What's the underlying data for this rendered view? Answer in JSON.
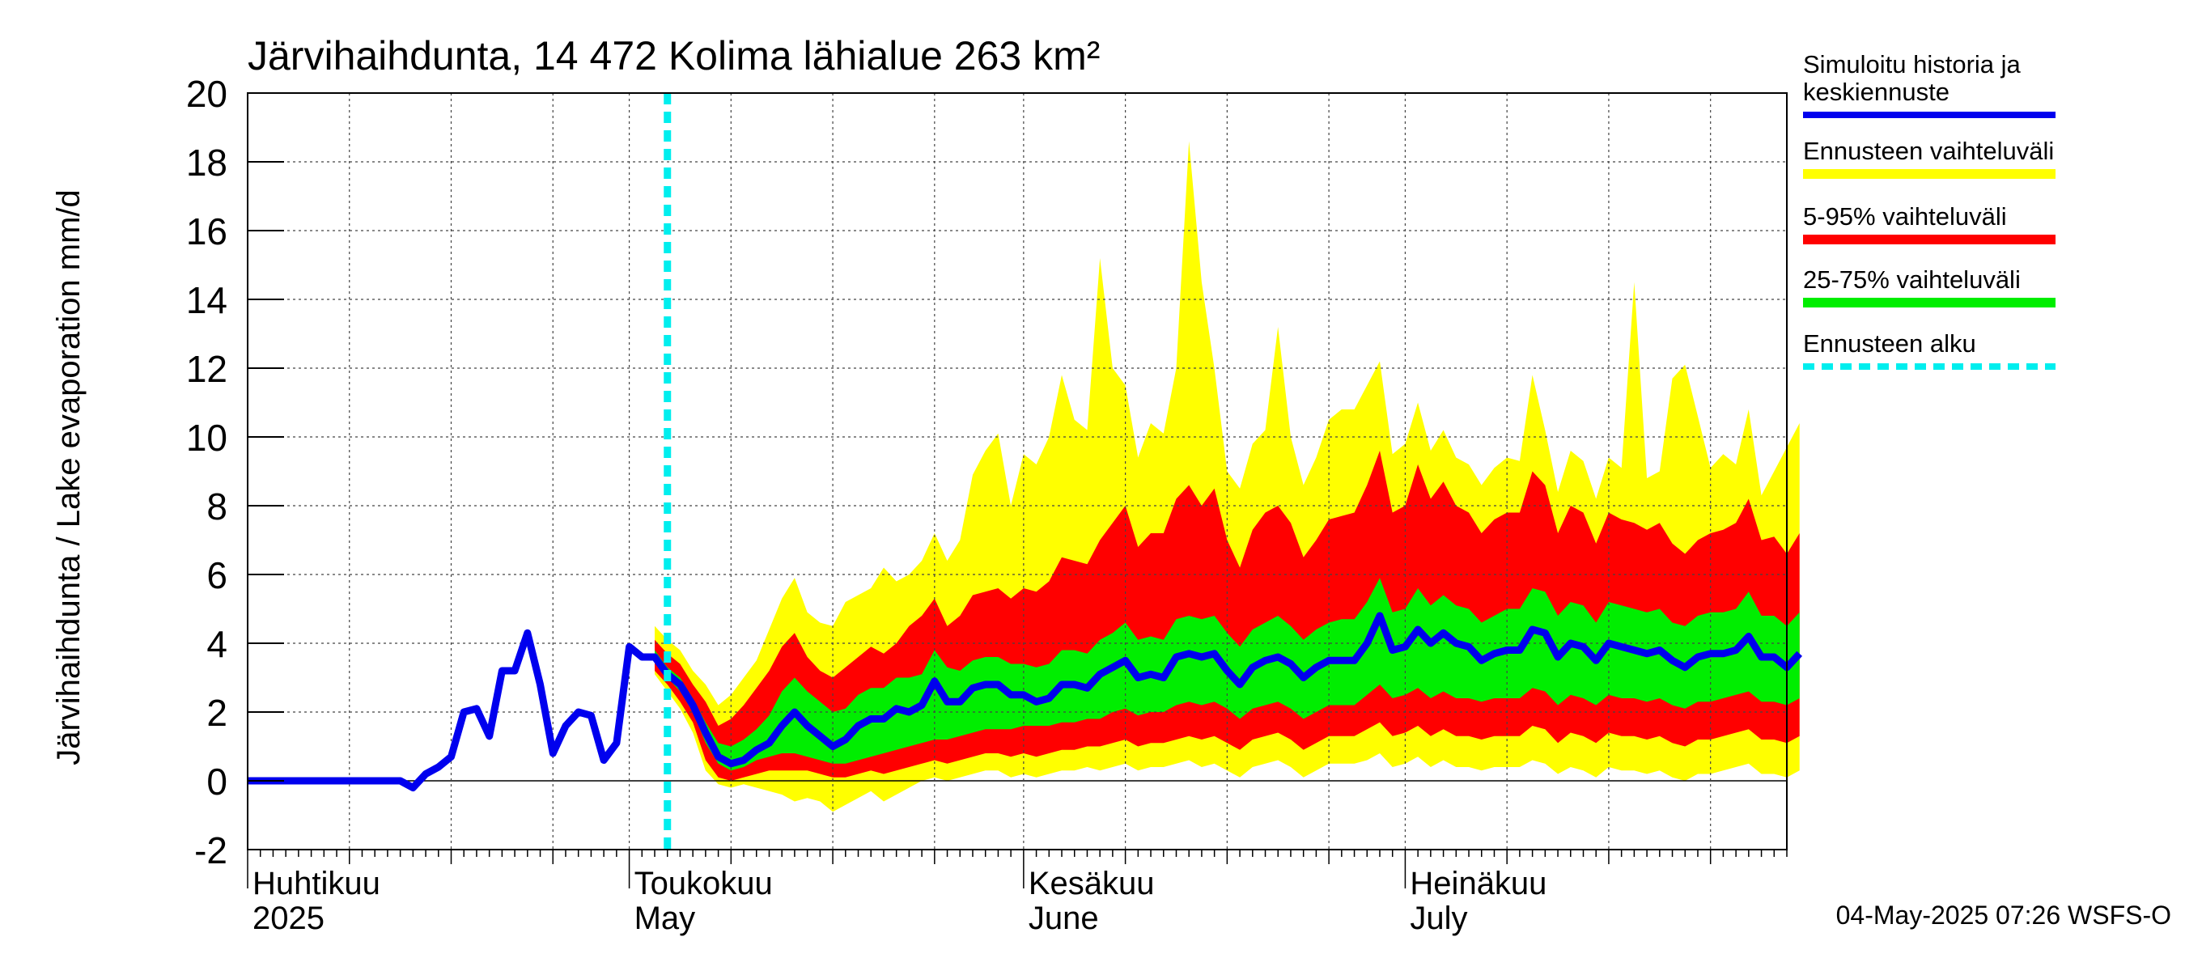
{
  "chart_data": {
    "type": "area",
    "title": "Järvihaihdunta, 14 472 Kolima lähialue 263 km²",
    "ylabel": "Järvihaihdunta / Lake evaporation   mm/d",
    "ylim": [
      -2,
      20
    ],
    "yticks": [
      "-2",
      "0",
      "2",
      "4",
      "6",
      "8",
      "10",
      "12",
      "14",
      "16",
      "18",
      "20"
    ],
    "xlim": [
      "2025-04-01",
      "2025-07-31"
    ],
    "grid": true,
    "month_labels": [
      {
        "fi": "Huhtikuu",
        "en": "2025",
        "date": "2025-04-01"
      },
      {
        "fi": "Toukokuu",
        "en": "May",
        "date": "2025-05-01"
      },
      {
        "fi": "Kesäkuu",
        "en": "June",
        "date": "2025-06-01"
      },
      {
        "fi": "Heinäkuu",
        "en": "July",
        "date": "2025-07-01"
      }
    ],
    "forecast_start": "2025-05-04",
    "legend": {
      "placement": "right",
      "items": [
        {
          "label_lines": [
            "Simuloitu historia ja",
            "keskiennuste"
          ],
          "color": "#0000ee",
          "style": "line"
        },
        {
          "label_lines": [
            "Ennusteen vaihteluväli"
          ],
          "color": "#ffff00",
          "style": "band"
        },
        {
          "label_lines": [
            "5-95% vaihteluväli"
          ],
          "color": "#ff0000",
          "style": "band"
        },
        {
          "label_lines": [
            "25-75% vaihteluväli"
          ],
          "color": "#00ee00",
          "style": "band"
        },
        {
          "label_lines": [
            "Ennusteen alku"
          ],
          "color": "#00eeee",
          "style": "dashed"
        }
      ]
    },
    "history": {
      "name": "Simuloitu historia",
      "start": "2025-04-01",
      "values": [
        0.0,
        0.0,
        0.0,
        0.0,
        0.0,
        0.0,
        0.0,
        0.0,
        0.0,
        0.0,
        0.0,
        0.0,
        0.0,
        -0.2,
        0.2,
        0.4,
        0.7,
        2.0,
        2.1,
        1.3,
        3.2,
        3.2,
        4.3,
        2.8,
        0.8,
        1.6,
        2.0,
        1.9,
        0.6,
        1.1,
        3.9,
        3.6
      ]
    },
    "forecast": {
      "start": "2025-05-03",
      "median": [
        3.6,
        3.1,
        2.8,
        2.2,
        1.4,
        0.7,
        0.5,
        0.6,
        0.9,
        1.1,
        1.6,
        2.0,
        1.6,
        1.3,
        1.0,
        1.2,
        1.6,
        1.8,
        1.8,
        2.1,
        2.0,
        2.2,
        2.9,
        2.3,
        2.3,
        2.7,
        2.8,
        2.8,
        2.5,
        2.5,
        2.3,
        2.4,
        2.8,
        2.8,
        2.7,
        3.1,
        3.3,
        3.5,
        3.0,
        3.1,
        3.0,
        3.6,
        3.7,
        3.6,
        3.7,
        3.2,
        2.8,
        3.3,
        3.5,
        3.6,
        3.4,
        3.0,
        3.3,
        3.5,
        3.5,
        3.5,
        4.0,
        4.8,
        3.8,
        3.9,
        4.4,
        4.0,
        4.3,
        4.0,
        3.9,
        3.5,
        3.7,
        3.8,
        3.8,
        4.4,
        4.3,
        3.6,
        4.0,
        3.9,
        3.5,
        4.0,
        3.9,
        3.8,
        3.7,
        3.8,
        3.5,
        3.3,
        3.6,
        3.7,
        3.7,
        3.8,
        4.2,
        3.6,
        3.6,
        3.3,
        3.7
      ],
      "p25": [
        3.5,
        3.0,
        2.6,
        2.0,
        1.1,
        0.5,
        0.3,
        0.4,
        0.6,
        0.7,
        0.8,
        0.8,
        0.7,
        0.6,
        0.5,
        0.5,
        0.6,
        0.7,
        0.8,
        0.9,
        1.0,
        1.1,
        1.2,
        1.2,
        1.3,
        1.4,
        1.5,
        1.5,
        1.5,
        1.6,
        1.6,
        1.6,
        1.7,
        1.7,
        1.8,
        1.8,
        2.0,
        2.1,
        1.9,
        2.0,
        2.0,
        2.2,
        2.3,
        2.2,
        2.3,
        2.1,
        1.8,
        2.1,
        2.2,
        2.3,
        2.1,
        1.8,
        2.0,
        2.2,
        2.2,
        2.2,
        2.5,
        2.8,
        2.4,
        2.5,
        2.7,
        2.4,
        2.6,
        2.4,
        2.4,
        2.3,
        2.4,
        2.4,
        2.4,
        2.7,
        2.6,
        2.2,
        2.5,
        2.4,
        2.2,
        2.5,
        2.4,
        2.4,
        2.3,
        2.4,
        2.2,
        2.1,
        2.3,
        2.3,
        2.4,
        2.5,
        2.6,
        2.3,
        2.3,
        2.2,
        2.4
      ],
      "p75": [
        3.8,
        3.3,
        3.0,
        2.4,
        1.7,
        1.1,
        1.0,
        1.2,
        1.5,
        1.9,
        2.6,
        3.0,
        2.6,
        2.3,
        2.0,
        2.1,
        2.5,
        2.7,
        2.7,
        3.0,
        3.0,
        3.1,
        3.8,
        3.3,
        3.2,
        3.5,
        3.6,
        3.6,
        3.4,
        3.4,
        3.3,
        3.4,
        3.8,
        3.8,
        3.7,
        4.1,
        4.3,
        4.6,
        4.1,
        4.2,
        4.1,
        4.7,
        4.8,
        4.7,
        4.8,
        4.3,
        3.9,
        4.4,
        4.6,
        4.8,
        4.5,
        4.1,
        4.4,
        4.6,
        4.7,
        4.7,
        5.2,
        5.9,
        4.9,
        5.0,
        5.6,
        5.1,
        5.4,
        5.1,
        5.0,
        4.6,
        4.8,
        5.0,
        5.0,
        5.6,
        5.5,
        4.8,
        5.2,
        5.1,
        4.6,
        5.2,
        5.1,
        5.0,
        4.9,
        5.0,
        4.6,
        4.5,
        4.8,
        4.9,
        4.9,
        5.0,
        5.5,
        4.8,
        4.8,
        4.5,
        4.9
      ],
      "p05": [
        3.2,
        2.8,
        2.3,
        1.7,
        0.6,
        0.1,
        0.0,
        0.1,
        0.2,
        0.3,
        0.3,
        0.3,
        0.3,
        0.2,
        0.1,
        0.1,
        0.2,
        0.3,
        0.2,
        0.3,
        0.4,
        0.5,
        0.6,
        0.5,
        0.6,
        0.7,
        0.8,
        0.8,
        0.7,
        0.8,
        0.7,
        0.8,
        0.9,
        0.9,
        1.0,
        1.0,
        1.1,
        1.2,
        1.0,
        1.1,
        1.1,
        1.2,
        1.3,
        1.2,
        1.3,
        1.1,
        0.9,
        1.2,
        1.3,
        1.4,
        1.2,
        0.9,
        1.1,
        1.3,
        1.3,
        1.3,
        1.5,
        1.7,
        1.3,
        1.4,
        1.6,
        1.3,
        1.5,
        1.3,
        1.3,
        1.2,
        1.3,
        1.3,
        1.3,
        1.6,
        1.5,
        1.1,
        1.4,
        1.3,
        1.1,
        1.4,
        1.3,
        1.3,
        1.2,
        1.3,
        1.1,
        1.0,
        1.2,
        1.2,
        1.3,
        1.4,
        1.5,
        1.2,
        1.2,
        1.1,
        1.3
      ],
      "p95": [
        4.1,
        3.7,
        3.4,
        2.8,
        2.3,
        1.6,
        1.8,
        2.2,
        2.7,
        3.2,
        3.9,
        4.3,
        3.6,
        3.2,
        3.0,
        3.3,
        3.6,
        3.9,
        3.7,
        4.0,
        4.5,
        4.8,
        5.3,
        4.5,
        4.8,
        5.4,
        5.5,
        5.6,
        5.3,
        5.6,
        5.5,
        5.8,
        6.5,
        6.4,
        6.3,
        7.0,
        7.5,
        8.0,
        6.8,
        7.2,
        7.2,
        8.2,
        8.6,
        8.0,
        8.5,
        7.0,
        6.2,
        7.3,
        7.8,
        8.0,
        7.5,
        6.5,
        7.0,
        7.6,
        7.7,
        7.8,
        8.6,
        9.6,
        7.8,
        8.0,
        9.2,
        8.2,
        8.7,
        8.0,
        7.8,
        7.2,
        7.6,
        7.8,
        7.8,
        9.0,
        8.6,
        7.2,
        8.0,
        7.8,
        6.9,
        7.8,
        7.6,
        7.5,
        7.3,
        7.5,
        6.9,
        6.6,
        7.0,
        7.2,
        7.3,
        7.5,
        8.2,
        7.0,
        7.1,
        6.6,
        7.2
      ],
      "min": [
        3.1,
        2.6,
        2.1,
        1.4,
        0.3,
        -0.1,
        -0.2,
        -0.1,
        -0.2,
        -0.3,
        -0.4,
        -0.6,
        -0.5,
        -0.6,
        -0.9,
        -0.7,
        -0.5,
        -0.3,
        -0.6,
        -0.4,
        -0.2,
        0.0,
        0.1,
        0.0,
        0.1,
        0.2,
        0.3,
        0.3,
        0.1,
        0.2,
        0.1,
        0.2,
        0.3,
        0.3,
        0.4,
        0.3,
        0.4,
        0.5,
        0.3,
        0.4,
        0.4,
        0.5,
        0.6,
        0.4,
        0.5,
        0.3,
        0.1,
        0.4,
        0.5,
        0.6,
        0.4,
        0.1,
        0.3,
        0.5,
        0.5,
        0.5,
        0.6,
        0.8,
        0.4,
        0.5,
        0.7,
        0.4,
        0.6,
        0.4,
        0.4,
        0.3,
        0.4,
        0.4,
        0.4,
        0.6,
        0.5,
        0.2,
        0.4,
        0.3,
        0.1,
        0.4,
        0.3,
        0.3,
        0.2,
        0.3,
        0.1,
        0.0,
        0.2,
        0.2,
        0.3,
        0.4,
        0.5,
        0.2,
        0.2,
        0.1,
        0.3
      ],
      "max": [
        4.5,
        4.1,
        3.8,
        3.2,
        2.8,
        2.2,
        2.5,
        3.0,
        3.5,
        4.4,
        5.3,
        5.9,
        4.9,
        4.6,
        4.5,
        5.2,
        5.4,
        5.6,
        6.2,
        5.8,
        6.0,
        6.4,
        7.2,
        6.4,
        7.0,
        8.9,
        9.6,
        10.1,
        8.0,
        9.5,
        9.2,
        10.0,
        11.8,
        10.5,
        10.2,
        15.2,
        12.0,
        11.5,
        9.4,
        10.4,
        10.1,
        12.0,
        18.6,
        14.5,
        12.0,
        9.0,
        8.5,
        9.8,
        10.2,
        13.2,
        10.0,
        8.6,
        9.4,
        10.5,
        10.8,
        10.8,
        11.5,
        12.2,
        9.5,
        9.8,
        11.0,
        9.6,
        10.2,
        9.4,
        9.2,
        8.6,
        9.1,
        9.4,
        9.3,
        11.8,
        10.2,
        8.4,
        9.6,
        9.3,
        8.2,
        9.4,
        9.1,
        14.5,
        8.8,
        9.0,
        11.7,
        12.1,
        10.6,
        9.1,
        9.5,
        9.2,
        10.8,
        8.3,
        9.0,
        9.7,
        10.4
      ]
    }
  },
  "timestamp": "04-May-2025 07:26 WSFS-O"
}
